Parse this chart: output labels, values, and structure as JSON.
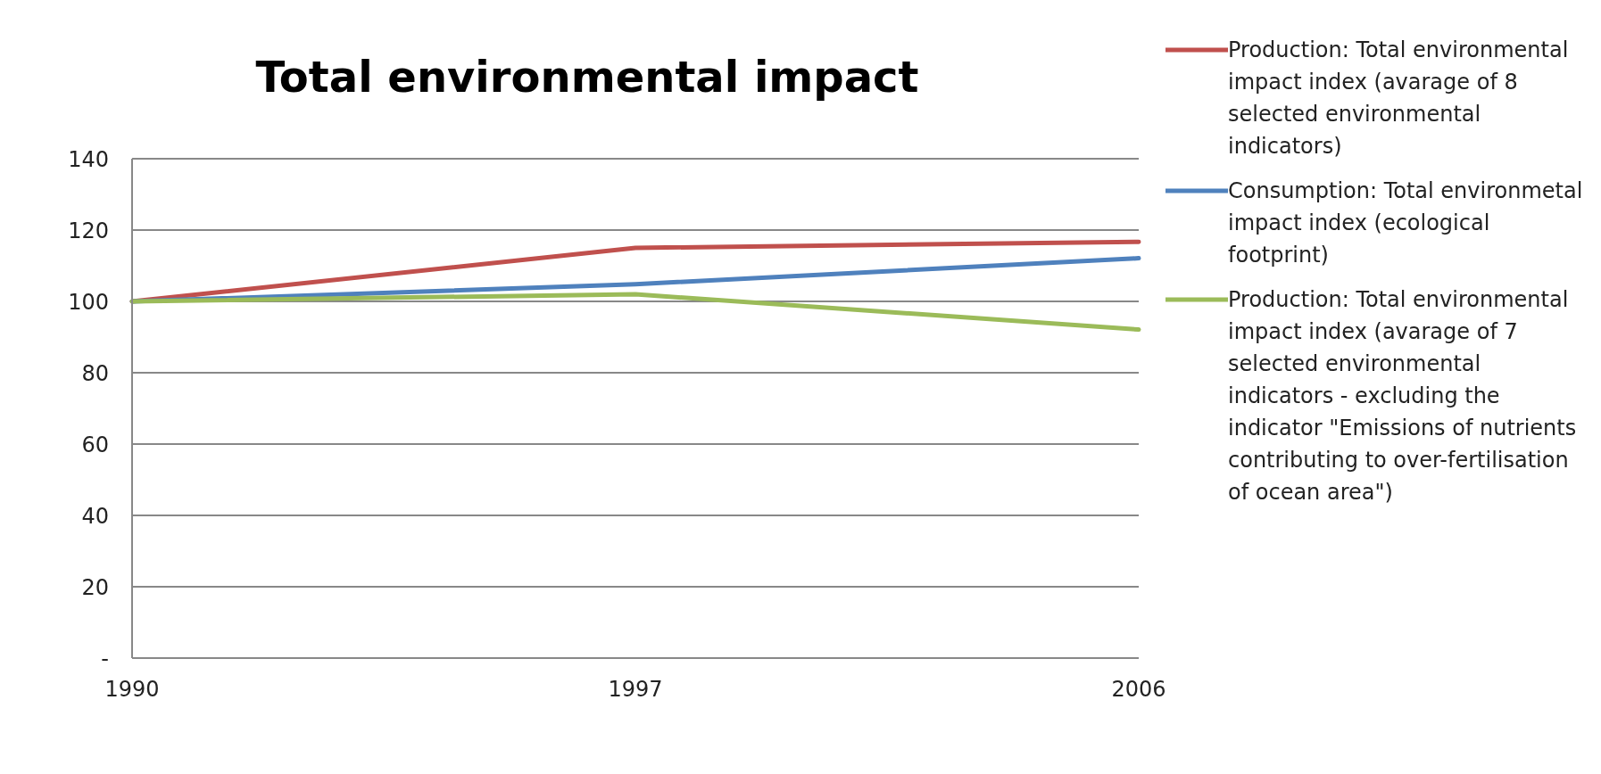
{
  "chart_data": {
    "type": "line",
    "title": "Total environmental impact",
    "categories": [
      "1990",
      "1997",
      "2006"
    ],
    "series": [
      {
        "name": "Production: Total environmental impact index (avarage of 8 selected environmental indicators)",
        "color": "#c0504d",
        "values": [
          100,
          115,
          116.7
        ]
      },
      {
        "name": "Consumption: Total environmetal impact index (ecological footprint)",
        "color": "#4f81bd",
        "values": [
          100,
          104.8,
          112.1
        ]
      },
      {
        "name": "Production: Total environmental impact index (avarage of 7 selected environmental indicators - excluding the indicator \"Emissions of nutrients contributing to over-fertilisation of ocean area\")",
        "color": "#9bbb59",
        "values": [
          100,
          102,
          92.1
        ]
      }
    ],
    "ylim": [
      0,
      140
    ],
    "yticks": [
      {
        "value": 0,
        "label": "-"
      },
      20,
      40,
      60,
      80,
      100,
      120,
      140
    ],
    "grid": "y",
    "legend": "right",
    "marker": "none",
    "line_style": "solid"
  }
}
